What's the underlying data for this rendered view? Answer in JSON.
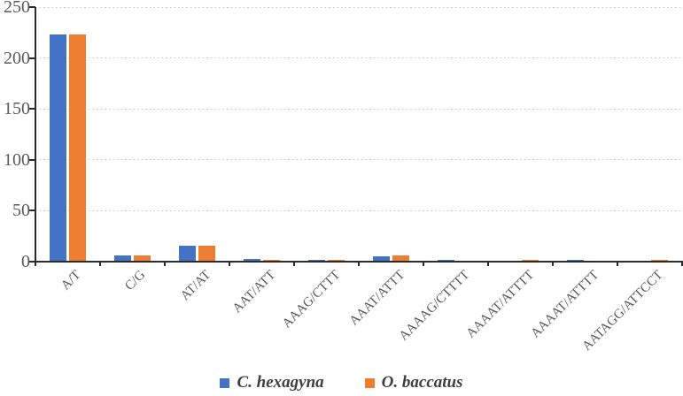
{
  "chart_data": {
    "type": "bar",
    "title": "",
    "xlabel": "",
    "ylabel": "",
    "categories": [
      "A/T",
      "C/G",
      "AT/AT",
      "AAT/ATT",
      "AAAG/CTTT",
      "AAAT/ATTT",
      "AAAAG/CTTTT",
      "AAAAT/ATTTT",
      "AAAAT/ATTTT",
      "AATAGG/ATTCCT"
    ],
    "series": [
      {
        "name": "C. hexagyna",
        "color": "#4472C4",
        "values": [
          223,
          6,
          16,
          3,
          2,
          5,
          2,
          0,
          2,
          0
        ]
      },
      {
        "name": "O. baccatus",
        "color": "#ED7D31",
        "values": [
          223,
          6,
          16,
          2,
          2,
          6,
          0,
          2,
          0,
          2
        ]
      }
    ],
    "ylim": [
      0,
      250
    ],
    "yticks": [
      0,
      50,
      100,
      150,
      200,
      250
    ],
    "grid": "horizontal-dotted",
    "legend_position": "bottom"
  },
  "colors": {
    "series_1": "#4472C4",
    "series_2": "#ED7D31",
    "axis": "#2b2b2b",
    "gridline": "#c9c9c9",
    "tick_label": "#595959",
    "legend_text": "#3f3f3f",
    "background": "#ffffff"
  }
}
